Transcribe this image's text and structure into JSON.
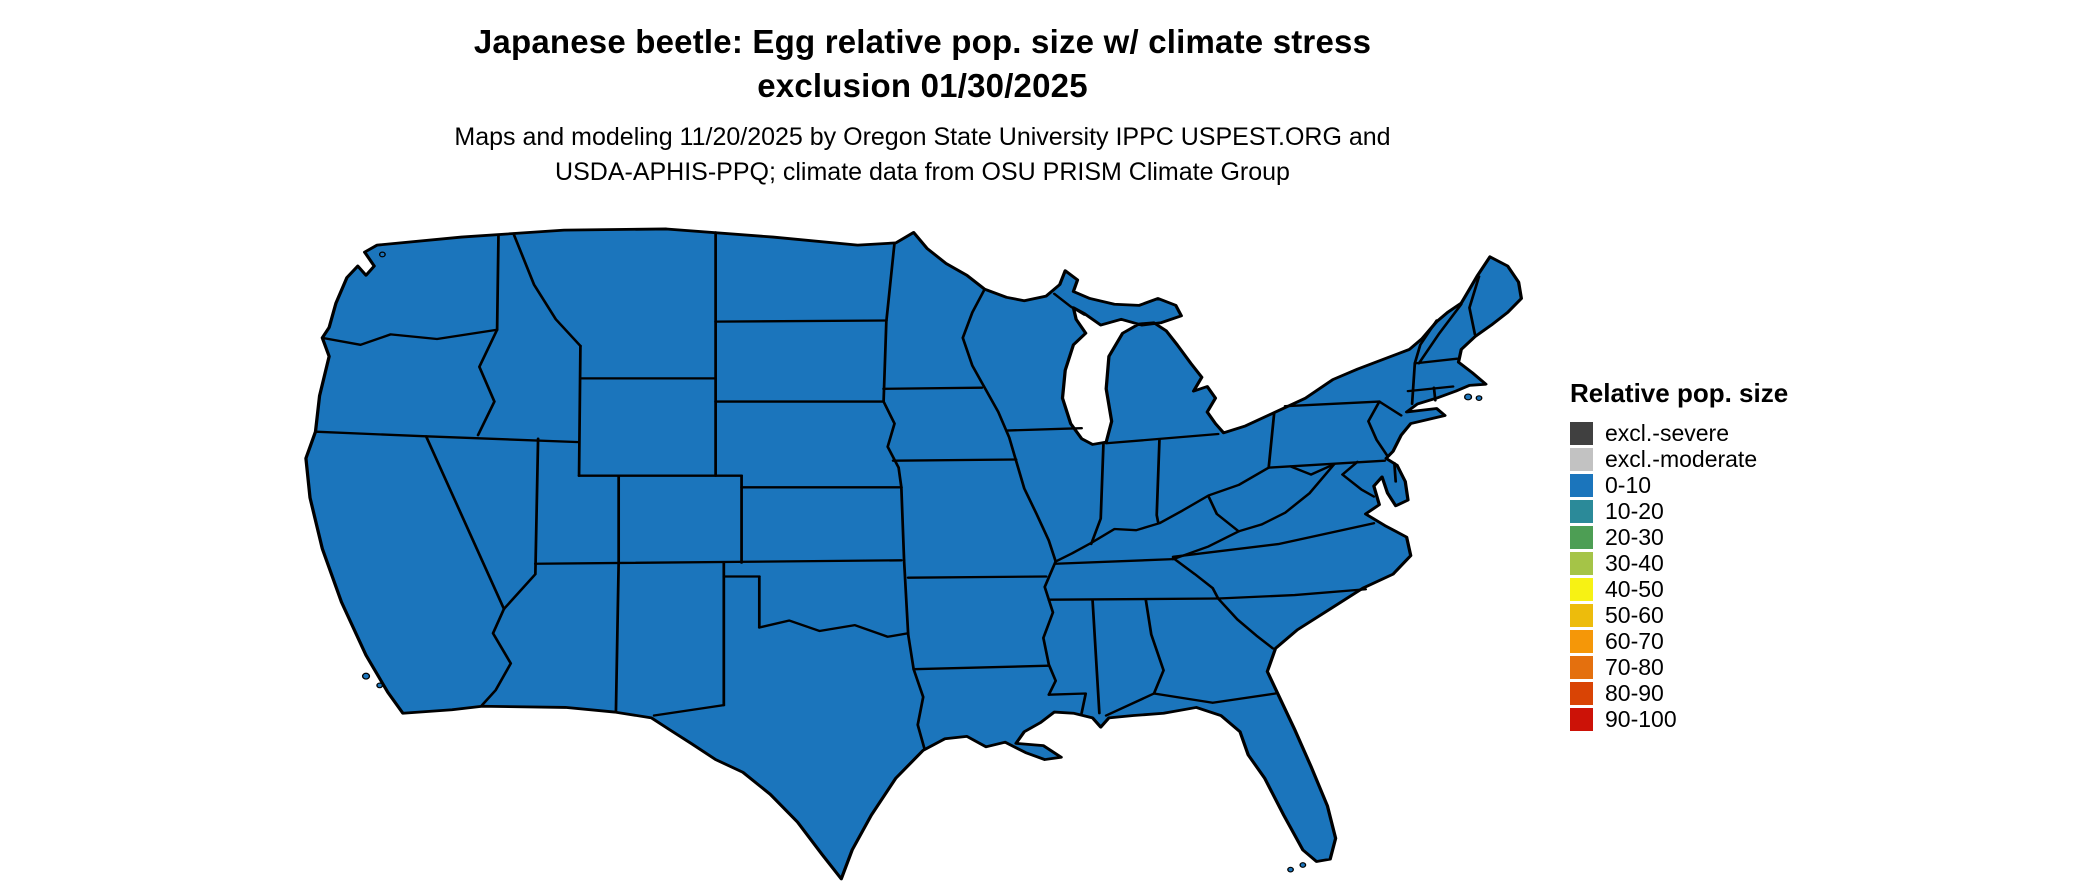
{
  "header": {
    "title_line1": "Japanese beetle: Egg relative pop. size w/ climate stress",
    "title_line2": "exclusion 01/30/2025",
    "subtitle_line1": "Maps and modeling 11/20/2025 by Oregon State University IPPC USPEST.ORG and",
    "subtitle_line2": "USDA-APHIS-PPQ; climate data from OSU PRISM Climate Group"
  },
  "legend": {
    "title": "Relative pop. size",
    "items": [
      {
        "label": "excl.-severe",
        "color": "#404040"
      },
      {
        "label": "excl.-moderate",
        "color": "#c2c2c2"
      },
      {
        "label": "0-10",
        "color": "#1b75bc"
      },
      {
        "label": "10-20",
        "color": "#2b8a99"
      },
      {
        "label": "20-30",
        "color": "#4d9e54"
      },
      {
        "label": "30-40",
        "color": "#a5c447"
      },
      {
        "label": "40-50",
        "color": "#f7f214"
      },
      {
        "label": "50-60",
        "color": "#edbc0c"
      },
      {
        "label": "60-70",
        "color": "#f59708"
      },
      {
        "label": "70-80",
        "color": "#e4700e"
      },
      {
        "label": "80-90",
        "color": "#d94405"
      },
      {
        "label": "90-100",
        "color": "#cc1207"
      }
    ]
  },
  "map": {
    "region": "Contiguous United States",
    "fill_bucket": "0-10",
    "fill_color": "#1b75bc",
    "border_color": "#000000",
    "background_color": "#ffffff"
  },
  "chart_data": {
    "type": "choropleth",
    "title": "Japanese beetle: Egg relative pop. size w/ climate stress exclusion 01/30/2025",
    "legend_title": "Relative pop. size",
    "classes": [
      "excl.-severe",
      "excl.-moderate",
      "0-10",
      "10-20",
      "20-30",
      "30-40",
      "40-50",
      "50-60",
      "60-70",
      "70-80",
      "80-90",
      "90-100"
    ],
    "observation": "Entire contiguous US mapped in the 0-10 relative population size class (blue)"
  }
}
